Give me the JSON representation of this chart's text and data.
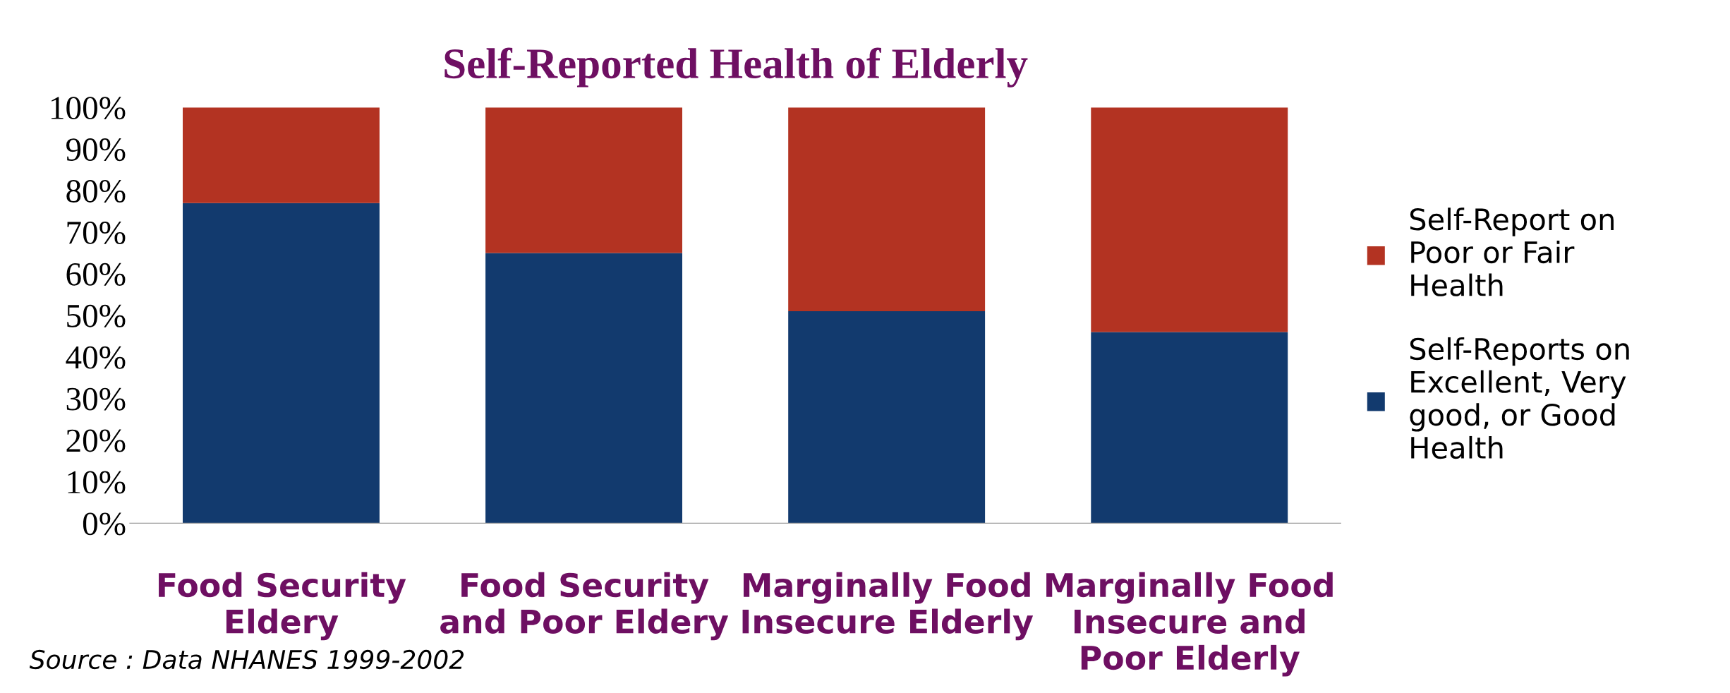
{
  "chart_data": {
    "type": "bar",
    "title": "Self-Reported Health of Elderly",
    "categories": [
      "Food Security\nEldery",
      "Food Security\nand Poor Eldery",
      "Marginally Food\nInsecure Elderly",
      "Marginally Food\nInsecure and\nPoor Elderly"
    ],
    "stacked": true,
    "series": [
      {
        "name": "Self-Reports on Excellent, Very good, or Good Health",
        "color": "#123a6e",
        "values": [
          77,
          65,
          51,
          46
        ]
      },
      {
        "name": "Self-Report on Poor or Fair Health",
        "color": "#b33322",
        "values": [
          23,
          35,
          49,
          54
        ]
      }
    ],
    "ylim": [
      0,
      100
    ],
    "yticks": [
      {
        "value": 0,
        "label": "0%"
      },
      {
        "value": 10,
        "label": "10%"
      },
      {
        "value": 20,
        "label": "20%"
      },
      {
        "value": 30,
        "label": "30%"
      },
      {
        "value": 40,
        "label": "40%"
      },
      {
        "value": 50,
        "label": "50%"
      },
      {
        "value": 60,
        "label": "60%"
      },
      {
        "value": 70,
        "label": "70%"
      },
      {
        "value": 80,
        "label": "80%"
      },
      {
        "value": 90,
        "label": "90%"
      },
      {
        "value": 100,
        "label": "100%"
      }
    ],
    "grid": false,
    "legend": "right",
    "annotations": [
      "Source : Data NHANES 1999-2002"
    ]
  }
}
